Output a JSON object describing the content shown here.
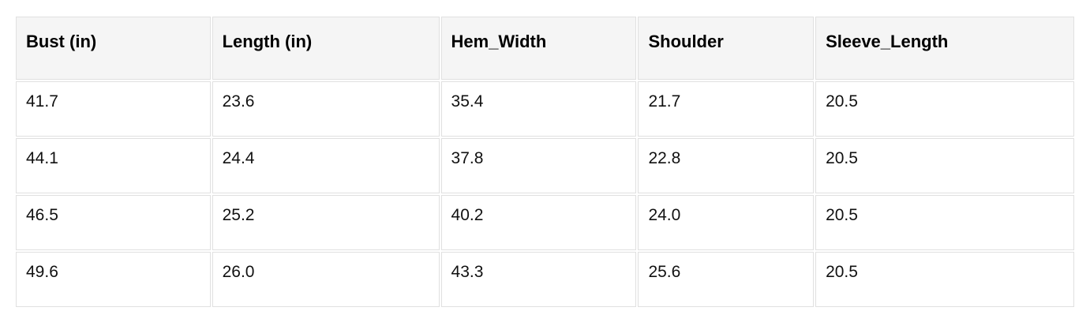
{
  "chart_data": {
    "type": "table",
    "columns": [
      "Bust (in)",
      "Length (in)",
      "Hem_Width",
      "Shoulder",
      "Sleeve_Length"
    ],
    "rows": [
      [
        "41.7",
        "23.6",
        "35.4",
        "21.7",
        "20.5"
      ],
      [
        "44.1",
        "24.4",
        "37.8",
        "22.8",
        "20.5"
      ],
      [
        "46.5",
        "25.2",
        "40.2",
        "24.0",
        "20.5"
      ],
      [
        "49.6",
        "26.0",
        "43.3",
        "25.6",
        "20.5"
      ]
    ]
  },
  "colors": {
    "header_bg": "#f5f5f5",
    "cell_border": "#e0e0e0",
    "header_text": "#000000",
    "body_text": "#111111",
    "page_bg": "#ffffff"
  }
}
